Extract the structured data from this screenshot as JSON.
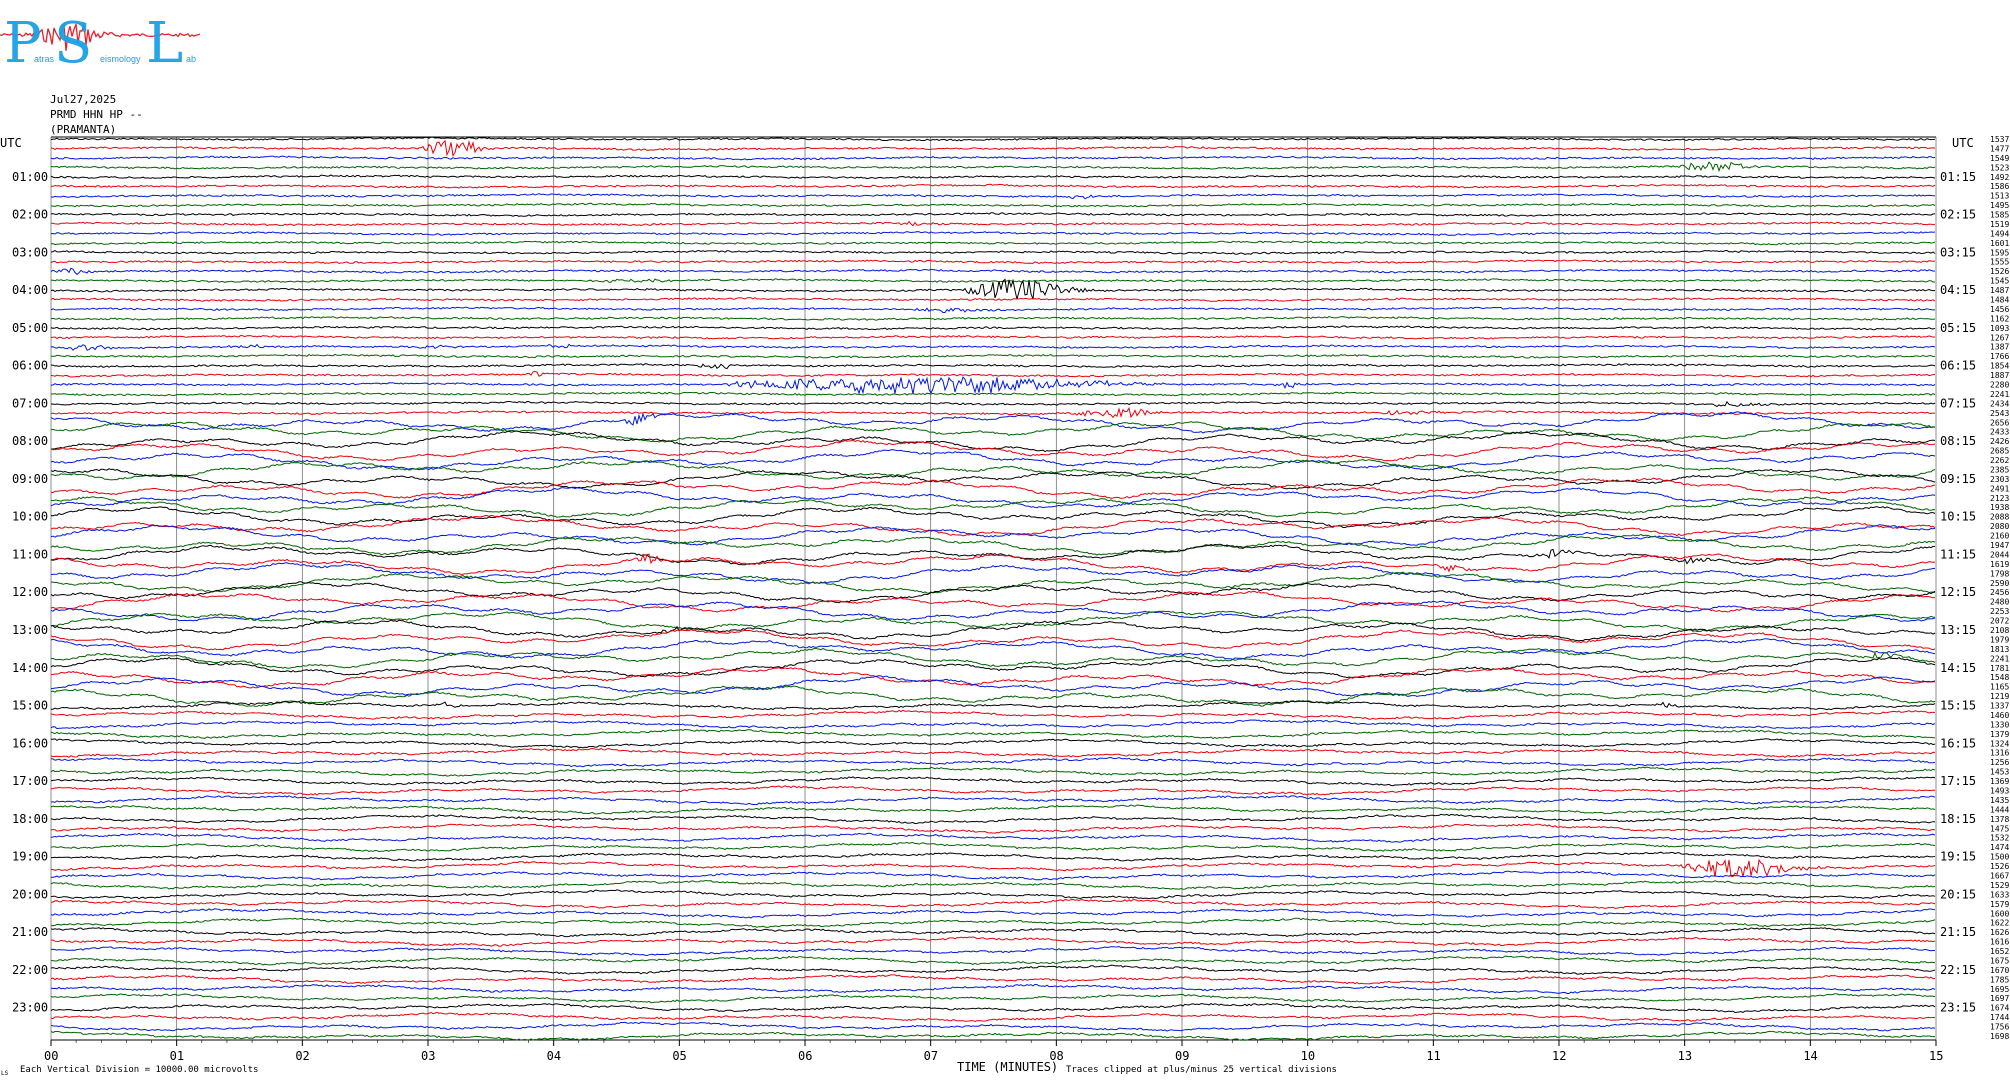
{
  "logo": {
    "main": "PSL",
    "letters": [
      "P",
      "S",
      "L"
    ],
    "sub": [
      "atras",
      "eismology",
      "ab"
    ],
    "colors": {
      "letters": "#1aa0e6",
      "trace": "#e8202a"
    }
  },
  "header": {
    "date": "Jul27,2025",
    "station": "PRMD HHN HP --",
    "location": "(PRAMANTA)"
  },
  "axis": {
    "left_title": "UTC",
    "right_title": "UTC",
    "left_labels": [
      "01:00",
      "02:00",
      "03:00",
      "04:00",
      "05:00",
      "06:00",
      "07:00",
      "08:00",
      "09:00",
      "10:00",
      "11:00",
      "12:00",
      "13:00",
      "14:00",
      "15:00",
      "16:00",
      "17:00",
      "18:00",
      "19:00",
      "20:00",
      "21:00",
      "22:00",
      "23:00"
    ],
    "right_labels": [
      "01:15",
      "02:15",
      "03:15",
      "04:15",
      "05:15",
      "06:15",
      "07:15",
      "08:15",
      "09:15",
      "10:15",
      "11:15",
      "12:15",
      "13:15",
      "14:15",
      "15:15",
      "16:15",
      "17:15",
      "18:15",
      "19:15",
      "20:15",
      "21:15",
      "22:15",
      "23:15"
    ],
    "x_ticks": [
      "00",
      "01",
      "02",
      "03",
      "04",
      "05",
      "06",
      "07",
      "08",
      "09",
      "10",
      "11",
      "12",
      "13",
      "14",
      "15"
    ],
    "xlabel": "TIME (MINUTES)",
    "footer_left": "Each Vertical Division = 10000.00 microvolts",
    "footer_right": "Traces clipped at plus/minus 25 vertical divisions",
    "corner_mark": "LS"
  },
  "chart_data": {
    "type": "line",
    "subtype": "helicorder",
    "x_range": [
      0,
      15
    ],
    "rows_per_hour": 4,
    "row_count": 96,
    "colors": [
      "#000000",
      "#e8000b",
      "#0018e0",
      "#006400"
    ],
    "grid": true,
    "right_counts": [
      "1537",
      "1477",
      "1549",
      "1523",
      "1492",
      "1586",
      "1513",
      "1495",
      "1585",
      "1519",
      "1494",
      "1601",
      "1595",
      "1555",
      "1526",
      "1545",
      "1487",
      "1484",
      "1456",
      "1162",
      "1093",
      "1267",
      "1387",
      "1766",
      "1854",
      "1887",
      "2280",
      "2241",
      "2434",
      "2543",
      "2656",
      "2433",
      "2426",
      "2685",
      "2262",
      "2385",
      "2303",
      "2491",
      "2123",
      "1938",
      "2088",
      "2080",
      "2160",
      "1947",
      "2044",
      "1619",
      "1798",
      "2590",
      "2456",
      "2480",
      "2253",
      "2072",
      "2108",
      "1979",
      "1813",
      "2241",
      "1781",
      "1548",
      "1165",
      "1219",
      "1337",
      "1460",
      "1330",
      "1379",
      "1324",
      "1316",
      "1256",
      "1453",
      "1369",
      "1493",
      "1435",
      "1444",
      "1378",
      "1475",
      "1532",
      "1474",
      "1500",
      "1526",
      "1667",
      "1529",
      "1633",
      "1579",
      "1600",
      "1622",
      "1626",
      "1616",
      "1652",
      "1675",
      "1670",
      "1785",
      "1695",
      "1697",
      "1674",
      "1744",
      "1756",
      "1698"
    ],
    "events": [
      {
        "row": 1,
        "minute": 3.1,
        "amp": 9,
        "dur": 0.5
      },
      {
        "row": 3,
        "minute": 13.1,
        "amp": 5,
        "dur": 0.6
      },
      {
        "row": 6,
        "minute": 8.1,
        "amp": 2,
        "dur": 0.3
      },
      {
        "row": 9,
        "minute": 6.8,
        "amp": 2,
        "dur": 0.3
      },
      {
        "row": 14,
        "minute": 0.1,
        "amp": 3,
        "dur": 0.3
      },
      {
        "row": 15,
        "minute": 4.5,
        "amp": 2,
        "dur": 0.6
      },
      {
        "row": 16,
        "minute": 7.5,
        "amp": 12,
        "dur": 0.8
      },
      {
        "row": 18,
        "minute": 7.0,
        "amp": 2,
        "dur": 0.6
      },
      {
        "row": 22,
        "minute": 0.2,
        "amp": 3,
        "dur": 0.4
      },
      {
        "row": 22,
        "minute": 1.5,
        "amp": 2,
        "dur": 0.3
      },
      {
        "row": 22,
        "minute": 3.0,
        "amp": 2,
        "dur": 0.3
      },
      {
        "row": 22,
        "minute": 4.0,
        "amp": 2,
        "dur": 0.2
      },
      {
        "row": 24,
        "minute": 5.2,
        "amp": 5,
        "dur": 0.3
      },
      {
        "row": 25,
        "minute": 3.8,
        "amp": 3,
        "dur": 0.2
      },
      {
        "row": 26,
        "minute": 6.2,
        "amp": 9,
        "dur": 2.8
      },
      {
        "row": 26,
        "minute": 9.8,
        "amp": 3,
        "dur": 0.2
      },
      {
        "row": 28,
        "minute": 13.3,
        "amp": 3,
        "dur": 0.4
      },
      {
        "row": 29,
        "minute": 8.3,
        "amp": 6,
        "dur": 0.6
      },
      {
        "row": 29,
        "minute": 10.6,
        "amp": 2,
        "dur": 0.6
      },
      {
        "row": 30,
        "minute": 4.6,
        "amp": 5,
        "dur": 0.3
      },
      {
        "row": 45,
        "minute": 4.7,
        "amp": 5,
        "dur": 0.2
      },
      {
        "row": 45,
        "minute": 11.1,
        "amp": 4,
        "dur": 0.3
      },
      {
        "row": 44,
        "minute": 11.9,
        "amp": 4,
        "dur": 0.3
      },
      {
        "row": 44,
        "minute": 13.0,
        "amp": 4,
        "dur": 0.3
      },
      {
        "row": 52,
        "minute": 4.9,
        "amp": 3,
        "dur": 0.2
      },
      {
        "row": 60,
        "minute": 3.1,
        "amp": 4,
        "dur": 0.2
      },
      {
        "row": 60,
        "minute": 12.8,
        "amp": 3,
        "dur": 0.2
      },
      {
        "row": 77,
        "minute": 13.2,
        "amp": 10,
        "dur": 0.9
      },
      {
        "row": 55,
        "minute": 14.5,
        "amp": 3,
        "dur": 0.3
      }
    ],
    "swells": [
      {
        "row_from": 30,
        "row_to": 60,
        "amp": 5
      },
      {
        "row_from": 60,
        "row_to": 96,
        "amp": 2
      }
    ]
  }
}
